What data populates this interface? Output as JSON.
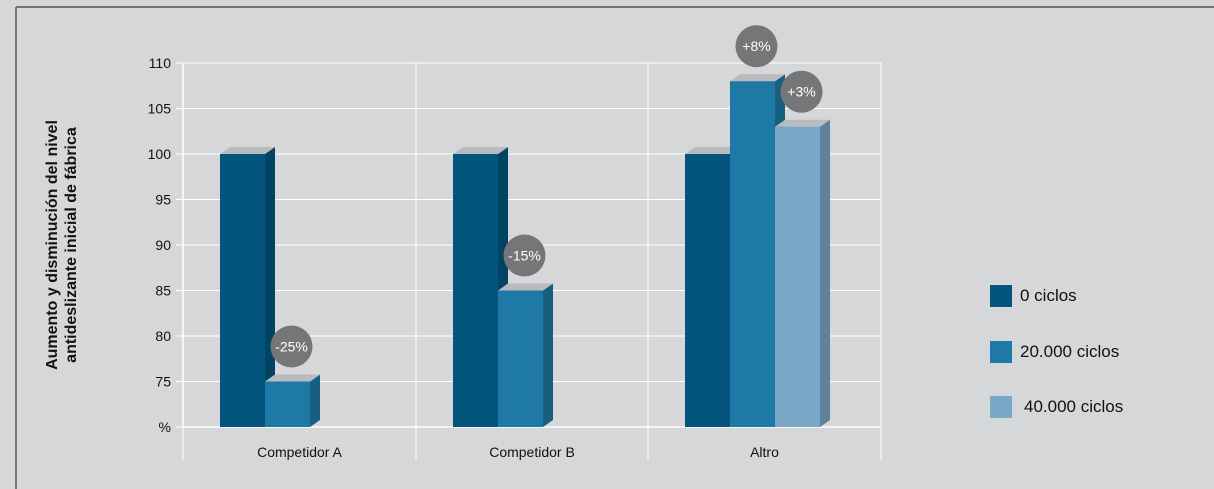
{
  "chart_data": {
    "type": "bar",
    "ylabel_lines": [
      "Aumento y disminución del nivel",
      "antideslizante inicial de fábrica"
    ],
    "yticks": [
      {
        "value": 70,
        "label": "%"
      },
      {
        "value": 75,
        "label": "75"
      },
      {
        "value": 80,
        "label": "80"
      },
      {
        "value": 85,
        "label": "85"
      },
      {
        "value": 90,
        "label": "90"
      },
      {
        "value": 95,
        "label": "95"
      },
      {
        "value": 100,
        "label": "100"
      },
      {
        "value": 105,
        "label": "105"
      },
      {
        "value": 110,
        "label": "110"
      }
    ],
    "ylim": [
      70,
      110
    ],
    "grid": true,
    "legend_position": "right",
    "categories": [
      "Competidor A",
      "Competidor B",
      "Altro"
    ],
    "series": [
      {
        "name": "0 ciclos",
        "color": "#03557e",
        "values": [
          100,
          100,
          100
        ]
      },
      {
        "name": "20.000 ciclos",
        "color": "#1f79a6",
        "values": [
          75,
          85,
          108
        ]
      },
      {
        "name": "40.000 ciclos",
        "color": "#7aa6c8",
        "values": [
          null,
          null,
          103
        ]
      }
    ],
    "annotations": [
      {
        "category": 0,
        "series": 1,
        "text": "-25%"
      },
      {
        "category": 1,
        "series": 1,
        "text": "-15%"
      },
      {
        "category": 2,
        "series": 1,
        "text": "+8%"
      },
      {
        "category": 2,
        "series": 2,
        "text": "+3%"
      }
    ]
  },
  "colors": {
    "background": "#d6d7d9",
    "grid": "#ffffff",
    "bubble": "#757678",
    "bubble_text": "#ffffff"
  }
}
